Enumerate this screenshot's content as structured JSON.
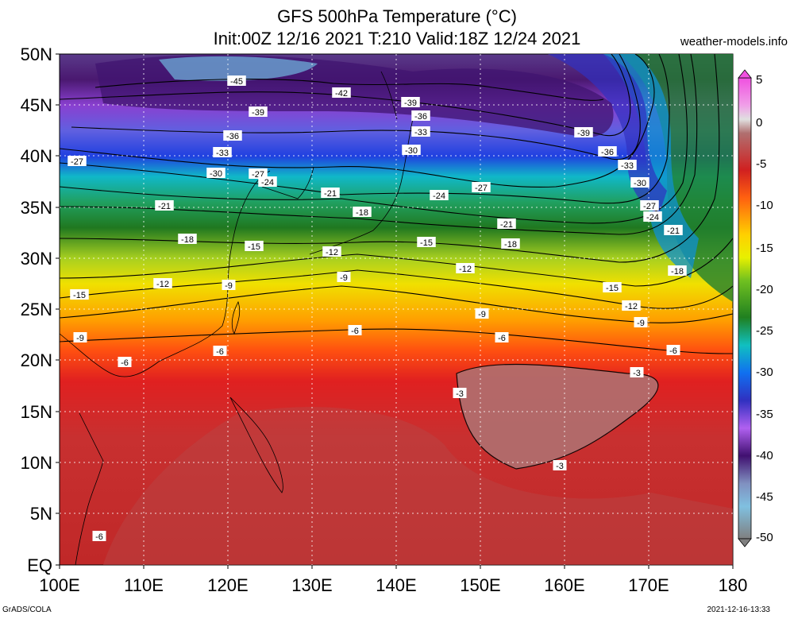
{
  "header": {
    "title_line1": "GFS 500hPa Temperature (°C)",
    "title_line2": "Init:00Z 12/16 2021 T:210 Valid:18Z 12/24 2021",
    "site": "weather-models.info"
  },
  "footer": {
    "left": "GrADS/COLA",
    "right": "2021-12-16-13:33"
  },
  "axes": {
    "lat_labels": [
      "50N",
      "45N",
      "40N",
      "35N",
      "30N",
      "25N",
      "20N",
      "15N",
      "10N",
      "5N",
      "EQ"
    ],
    "lon_labels": [
      "100E",
      "110E",
      "120E",
      "130E",
      "140E",
      "150E",
      "160E",
      "170E",
      "180"
    ]
  },
  "colorbar": {
    "labels": [
      "5",
      "0",
      "-5",
      "-10",
      "-15",
      "-20",
      "-25",
      "-30",
      "-35",
      "-40",
      "-45",
      "-50"
    ],
    "colors": [
      "#e8a0e0",
      "#f060d8",
      "#c8c8c8",
      "#b07070",
      "#c03030",
      "#e02020",
      "#ff5010",
      "#ff9000",
      "#ffd000",
      "#f0f000",
      "#90d020",
      "#208020",
      "#20a050",
      "#10c0c0",
      "#20a0f0",
      "#2060f0",
      "#3030c0",
      "#8040e0",
      "#c070f0",
      "#501880",
      "#9080c0",
      "#70b8e0",
      "#707070"
    ]
  },
  "contour_labels": [
    {
      "text": "-45"
    },
    {
      "text": "-42"
    },
    {
      "text": "-39"
    },
    {
      "text": "-39"
    },
    {
      "text": "-36"
    },
    {
      "text": "-39"
    },
    {
      "text": "-36"
    },
    {
      "text": "-33"
    },
    {
      "text": "-33"
    },
    {
      "text": "-30"
    },
    {
      "text": "-27"
    },
    {
      "text": "-30"
    },
    {
      "text": "-27"
    },
    {
      "text": "-24"
    },
    {
      "text": "-21"
    },
    {
      "text": "-24"
    },
    {
      "text": "-27"
    },
    {
      "text": "-36"
    },
    {
      "text": "-33"
    },
    {
      "text": "-30"
    },
    {
      "text": "-27"
    },
    {
      "text": "-24"
    },
    {
      "text": "-21"
    },
    {
      "text": "-18"
    },
    {
      "text": "-21"
    },
    {
      "text": "-18"
    },
    {
      "text": "-15"
    },
    {
      "text": "-12"
    },
    {
      "text": "-15"
    },
    {
      "text": "-18"
    },
    {
      "text": "-21"
    },
    {
      "text": "-12"
    },
    {
      "text": "-9"
    },
    {
      "text": "-12"
    },
    {
      "text": "-9"
    },
    {
      "text": "-15"
    },
    {
      "text": "-15"
    },
    {
      "text": "-18"
    },
    {
      "text": "-9"
    },
    {
      "text": "-12"
    },
    {
      "text": "-9"
    },
    {
      "text": "-6"
    },
    {
      "text": "-6"
    },
    {
      "text": "-6"
    },
    {
      "text": "-6"
    },
    {
      "text": "-6"
    },
    {
      "text": "-3"
    },
    {
      "text": "-3"
    },
    {
      "text": "-3"
    },
    {
      "text": "-6"
    },
    {
      "text": "-9"
    }
  ]
}
